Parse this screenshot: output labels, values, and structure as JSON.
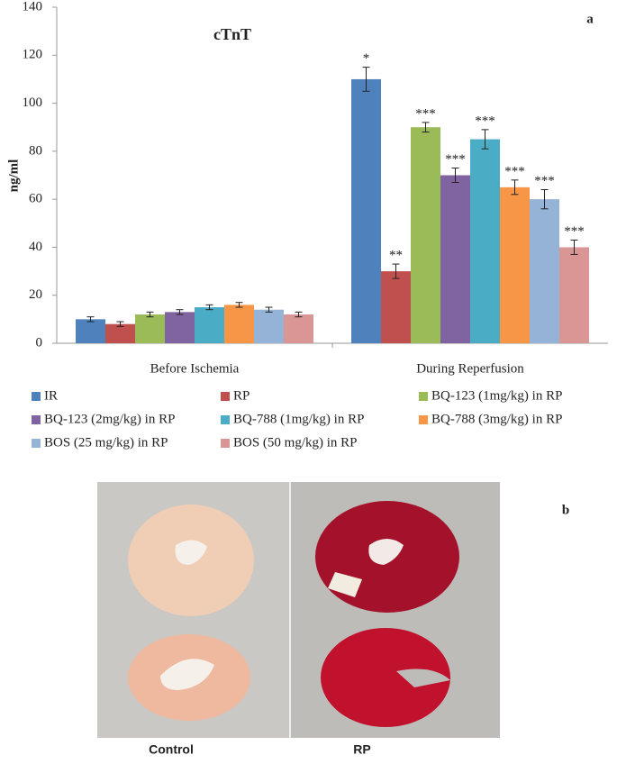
{
  "chart_data": {
    "type": "bar",
    "title": "cTnT",
    "panel_label": "a",
    "y_label": "ng/ml",
    "categories": [
      "Before Ischemia",
      "During Reperfusion"
    ],
    "ylim": [
      0,
      140
    ],
    "yticks": [
      0,
      20,
      40,
      60,
      80,
      100,
      120,
      140
    ],
    "series": [
      {
        "name": "IR",
        "color": "#4f81bd",
        "values": [
          10,
          110
        ],
        "errors": [
          1,
          5
        ],
        "labels": [
          null,
          "*"
        ]
      },
      {
        "name": "RP",
        "color": "#c0504d",
        "values": [
          8,
          30
        ],
        "errors": [
          1,
          3
        ],
        "labels": [
          null,
          "**"
        ]
      },
      {
        "name": "BQ-123 (1mg/kg) in RP",
        "color": "#9bbb59",
        "values": [
          12,
          90
        ],
        "errors": [
          1,
          2
        ],
        "labels": [
          null,
          "***"
        ]
      },
      {
        "name": "BQ-123 (2mg/kg) in RP",
        "color": "#8064a2",
        "values": [
          13,
          70
        ],
        "errors": [
          1,
          3
        ],
        "labels": [
          null,
          "***"
        ]
      },
      {
        "name": "BQ-788 (1mg/kg) in RP",
        "color": "#4bacc6",
        "values": [
          15,
          85
        ],
        "errors": [
          1,
          4
        ],
        "labels": [
          null,
          "***"
        ]
      },
      {
        "name": "BQ-788 (3mg/kg) in RP",
        "color": "#f79646",
        "values": [
          16,
          65
        ],
        "errors": [
          1,
          3
        ],
        "labels": [
          null,
          "***"
        ]
      },
      {
        "name": "BOS (25 mg/kg) in RP",
        "color": "#95b3d7",
        "values": [
          14,
          60
        ],
        "errors": [
          1,
          4
        ],
        "labels": [
          null,
          "***"
        ]
      },
      {
        "name": "BOS (50 mg/kg) in RP",
        "color": "#d99694",
        "values": [
          12,
          40
        ],
        "errors": [
          1,
          3
        ],
        "labels": [
          null,
          "***"
        ]
      }
    ]
  },
  "photo": {
    "panel_label": "b",
    "left_label": "Control",
    "right_label": "RP"
  }
}
